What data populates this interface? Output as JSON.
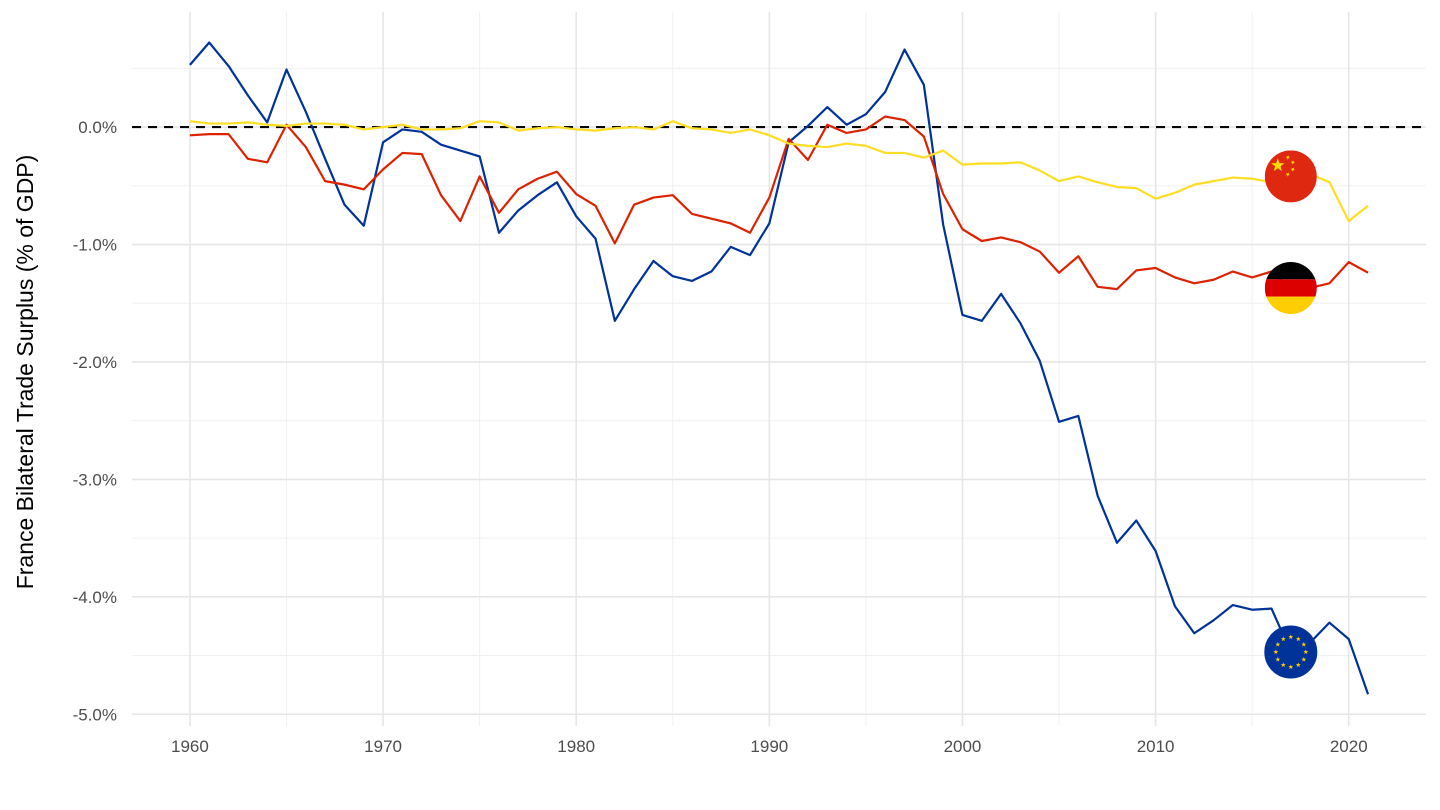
{
  "chart_data": {
    "type": "line",
    "title": "",
    "xlabel": "",
    "ylabel": "France Bilateral Trade Surplus (% of GDP)",
    "xlim": [
      1957,
      2024
    ],
    "ylim": [
      -5.1,
      0.98
    ],
    "x_ticks": [
      1960,
      1970,
      1980,
      1990,
      2000,
      2010,
      2020
    ],
    "x_tick_labels": [
      "1960",
      "1970",
      "1980",
      "1990",
      "2000",
      "2010",
      "2020"
    ],
    "y_ticks": [
      0,
      -1,
      -2,
      -3,
      -4,
      -5
    ],
    "y_tick_labels": [
      "0.0%",
      "-1.0%",
      "-2.0%",
      "-3.0%",
      "-4.0%",
      "-5.0%"
    ],
    "grid": true,
    "reference_line": {
      "y": 0,
      "style": "dashed",
      "color": "#000000"
    },
    "x": [
      1960,
      1961,
      1962,
      1963,
      1964,
      1965,
      1966,
      1967,
      1968,
      1969,
      1970,
      1971,
      1972,
      1973,
      1974,
      1975,
      1976,
      1977,
      1978,
      1979,
      1980,
      1981,
      1982,
      1983,
      1984,
      1985,
      1986,
      1987,
      1988,
      1989,
      1990,
      1991,
      1992,
      1993,
      1994,
      1995,
      1996,
      1997,
      1998,
      1999,
      2000,
      2001,
      2002,
      2003,
      2004,
      2005,
      2006,
      2007,
      2008,
      2009,
      2010,
      2011,
      2012,
      2013,
      2014,
      2015,
      2016,
      2017,
      2018,
      2019,
      2020,
      2021
    ],
    "series": [
      {
        "color": "#003399",
        "flag": "eu-flag-icon",
        "flag_year": 2017,
        "values": [
          0.53,
          0.72,
          0.52,
          0.27,
          0.04,
          0.49,
          0.13,
          -0.27,
          -0.66,
          -0.84,
          -0.13,
          -0.02,
          -0.04,
          -0.15,
          -0.2,
          -0.25,
          -0.9,
          -0.71,
          -0.58,
          -0.47,
          -0.76,
          -0.95,
          -1.65,
          -1.38,
          -1.14,
          -1.27,
          -1.31,
          -1.23,
          -1.02,
          -1.09,
          -0.82,
          -0.13,
          0.01,
          0.17,
          0.02,
          0.11,
          0.3,
          0.66,
          0.36,
          -0.83,
          -1.6,
          -1.65,
          -1.42,
          -1.67,
          -1.99,
          -2.51,
          -2.46,
          -3.14,
          -3.54,
          -3.35,
          -3.61,
          -4.08,
          -4.31,
          -4.2,
          -4.07,
          -4.11,
          -4.1,
          -4.47,
          -4.39,
          -4.22,
          -4.36,
          -4.83
        ]
      },
      {
        "color": "#dd2200",
        "flag": "germany-flag-icon",
        "flag_year": 2017,
        "values": [
          -0.07,
          -0.06,
          -0.06,
          -0.27,
          -0.3,
          0.02,
          -0.17,
          -0.46,
          -0.49,
          -0.53,
          -0.36,
          -0.22,
          -0.23,
          -0.58,
          -0.8,
          -0.42,
          -0.73,
          -0.53,
          -0.44,
          -0.38,
          -0.57,
          -0.67,
          -0.99,
          -0.66,
          -0.6,
          -0.58,
          -0.74,
          -0.78,
          -0.82,
          -0.9,
          -0.6,
          -0.1,
          -0.28,
          0.02,
          -0.05,
          -0.02,
          0.09,
          0.06,
          -0.08,
          -0.57,
          -0.87,
          -0.97,
          -0.94,
          -0.98,
          -1.06,
          -1.24,
          -1.1,
          -1.36,
          -1.38,
          -1.22,
          -1.2,
          -1.28,
          -1.33,
          -1.3,
          -1.23,
          -1.28,
          -1.23,
          -1.37,
          -1.37,
          -1.33,
          -1.15,
          -1.24
        ]
      },
      {
        "color": "#ffdd22",
        "flag": "china-flag-icon",
        "flag_year": 2017,
        "values": [
          0.05,
          0.03,
          0.03,
          0.04,
          0.02,
          0.01,
          0.03,
          0.03,
          0.02,
          -0.02,
          0.0,
          0.02,
          -0.02,
          -0.02,
          -0.01,
          0.05,
          0.04,
          -0.03,
          -0.01,
          -0.0,
          -0.02,
          -0.03,
          -0.01,
          -0.0,
          -0.02,
          0.05,
          -0.01,
          -0.02,
          -0.05,
          -0.02,
          -0.07,
          -0.14,
          -0.16,
          -0.17,
          -0.14,
          -0.16,
          -0.22,
          -0.22,
          -0.26,
          -0.2,
          -0.32,
          -0.31,
          -0.31,
          -0.3,
          -0.37,
          -0.46,
          -0.42,
          -0.47,
          -0.51,
          -0.52,
          -0.61,
          -0.56,
          -0.49,
          -0.46,
          -0.43,
          -0.44,
          -0.47,
          -0.42,
          -0.4,
          -0.47,
          -0.8,
          -0.67
        ]
      }
    ]
  }
}
